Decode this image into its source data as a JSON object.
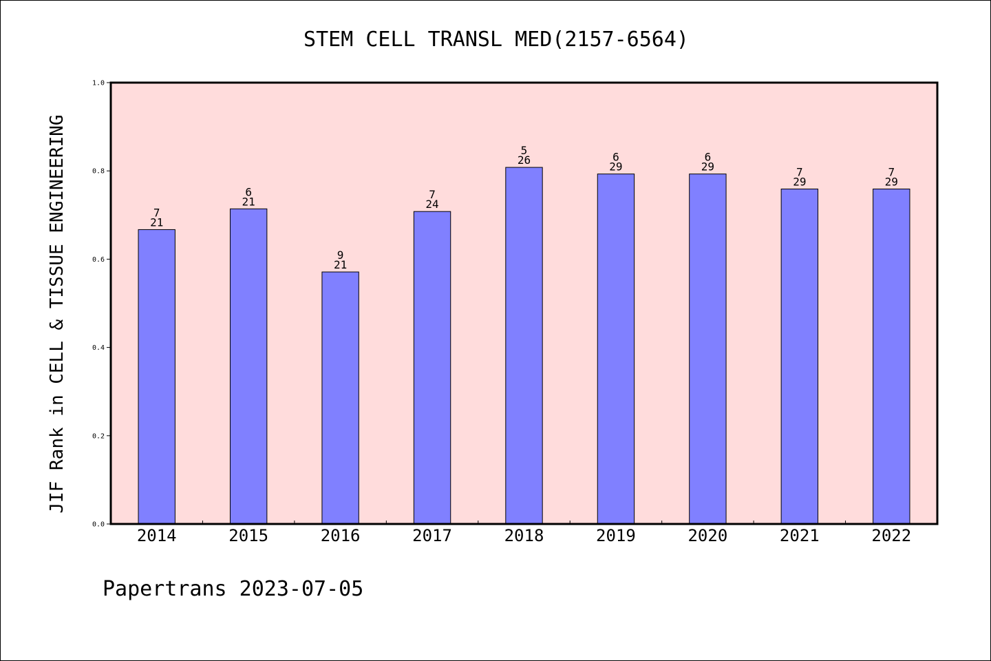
{
  "chart_data": {
    "type": "bar",
    "title": "STEM CELL TRANSL MED(2157-6564)",
    "xlabel": "",
    "ylabel": "JIF Rank in CELL & TISSUE ENGINEERING",
    "categories": [
      "2014",
      "2015",
      "2016",
      "2017",
      "2018",
      "2019",
      "2020",
      "2021",
      "2022"
    ],
    "values": [
      0.667,
      0.714,
      0.571,
      0.708,
      0.808,
      0.793,
      0.793,
      0.759,
      0.759
    ],
    "bar_labels": [
      {
        "rank": "7",
        "total": "21"
      },
      {
        "rank": "6",
        "total": "21"
      },
      {
        "rank": "9",
        "total": "21"
      },
      {
        "rank": "7",
        "total": "24"
      },
      {
        "rank": "5",
        "total": "26"
      },
      {
        "rank": "6",
        "total": "29"
      },
      {
        "rank": "6",
        "total": "29"
      },
      {
        "rank": "7",
        "total": "29"
      },
      {
        "rank": "7",
        "total": "29"
      }
    ],
    "ylim": [
      0,
      1.0
    ],
    "yticks": [
      "0.0",
      "0.2",
      "0.4",
      "0.6",
      "0.8",
      "1.0"
    ],
    "grid": false,
    "legend": "none",
    "colors": {
      "bar_fill": "#8080ff",
      "plot_background": "#ffdcdc",
      "axis": "#000000"
    }
  },
  "footer": {
    "text": "Papertrans 2023-07-05"
  }
}
